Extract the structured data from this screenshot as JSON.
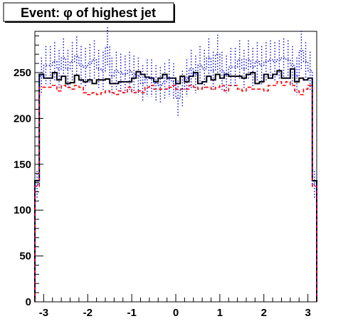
{
  "chart_data": {
    "type": "histogram",
    "title": "Event: φ of highest jet",
    "xlabel": "",
    "ylabel": "",
    "xlim": [
      -3.2,
      3.2
    ],
    "ylim": [
      0,
      295
    ],
    "xticks": [
      -3,
      -2,
      -1,
      0,
      1,
      2,
      3
    ],
    "xtick_labels": [
      "-3",
      "-2",
      "-1",
      "0",
      "1",
      "2",
      "3"
    ],
    "yticks": [
      0,
      50,
      100,
      150,
      200,
      250
    ],
    "ytick_labels": [
      "0",
      "50",
      "100",
      "150",
      "200",
      "250"
    ],
    "grid": false,
    "legend": "none",
    "bin_edges": [
      -3.2,
      -3.1,
      -3.0,
      -2.9,
      -2.8,
      -2.7,
      -2.6,
      -2.5,
      -2.4,
      -2.3,
      -2.2,
      -2.1,
      -2.0,
      -1.9,
      -1.8,
      -1.7,
      -1.6,
      -1.5,
      -1.4,
      -1.3,
      -1.2,
      -1.1,
      -1.0,
      -0.9,
      -0.8,
      -0.7,
      -0.6,
      -0.5,
      -0.4,
      -0.3,
      -0.2,
      -0.1,
      0.0,
      0.1,
      0.2,
      0.3,
      0.4,
      0.5,
      0.6,
      0.7,
      0.8,
      0.9,
      1.0,
      1.1,
      1.2,
      1.3,
      1.4,
      1.5,
      1.6,
      1.7,
      1.8,
      1.9,
      2.0,
      2.1,
      2.2,
      2.3,
      2.4,
      2.5,
      2.6,
      2.7,
      2.8,
      2.9,
      3.0,
      3.1,
      3.2
    ],
    "series": [
      {
        "style": "solid",
        "color": "#000000",
        "values": [
          132,
          248,
          244,
          244,
          250,
          242,
          246,
          238,
          239,
          247,
          242,
          240,
          242,
          238,
          242,
          242,
          243,
          238,
          238,
          240,
          240,
          240,
          244,
          251,
          248,
          245,
          244,
          240,
          244,
          248,
          244,
          244,
          238,
          246,
          240,
          246,
          250,
          238,
          240,
          246,
          242,
          248,
          244,
          248,
          246,
          246,
          246,
          244,
          248,
          250,
          238,
          240,
          248,
          244,
          248,
          252,
          244,
          244,
          254,
          240,
          244,
          242,
          244,
          132
        ]
      },
      {
        "style": "dashed",
        "color": "#ff0000",
        "values": [
          126,
          234,
          234,
          234,
          236,
          230,
          236,
          234,
          232,
          236,
          234,
          228,
          226,
          228,
          226,
          228,
          230,
          228,
          226,
          230,
          228,
          234,
          228,
          230,
          228,
          234,
          236,
          232,
          232,
          232,
          234,
          236,
          232,
          232,
          232,
          236,
          234,
          232,
          234,
          234,
          232,
          234,
          236,
          230,
          236,
          236,
          232,
          230,
          234,
          232,
          232,
          232,
          230,
          236,
          236,
          240,
          236,
          240,
          236,
          230,
          226,
          232,
          236,
          126
        ]
      },
      {
        "style": "dotted",
        "color": "#0000cc",
        "values": [
          128,
          246,
          258,
          258,
          262,
          254,
          266,
          254,
          262,
          268,
          258,
          256,
          260,
          264,
          254,
          252,
          278,
          246,
          252,
          250,
          248,
          252,
          248,
          246,
          238,
          244,
          244,
          238,
          236,
          240,
          244,
          240,
          222,
          232,
          244,
          254,
          248,
          258,
          254,
          266,
          252,
          270,
          252,
          248,
          256,
          256,
          264,
          254,
          264,
          256,
          262,
          258,
          262,
          264,
          262,
          264,
          266,
          264,
          258,
          246,
          274,
          262,
          252,
          128
        ]
      }
    ]
  }
}
